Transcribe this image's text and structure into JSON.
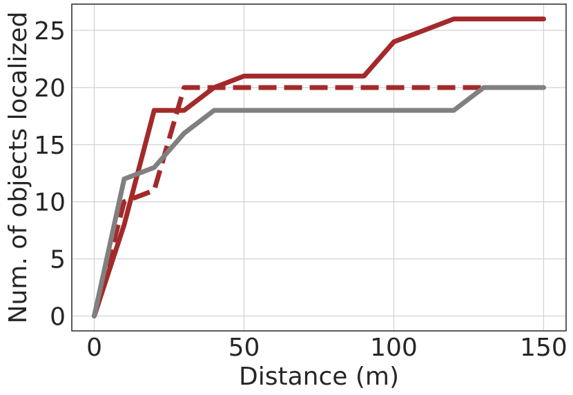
{
  "chart_data": {
    "type": "line",
    "xlabel": "Distance (m)",
    "ylabel": "Num. of objects localized",
    "xlim": [
      -7.5,
      157.5
    ],
    "ylim": [
      -1.3,
      27.3
    ],
    "xticks": [
      0,
      50,
      100,
      150
    ],
    "yticks": [
      0,
      5,
      10,
      15,
      20,
      25
    ],
    "grid": true,
    "series": [
      {
        "color": "#a32a2a",
        "style": "solid",
        "x": [
          0,
          10,
          20,
          30,
          40,
          50,
          60,
          70,
          80,
          90,
          100,
          110,
          120,
          130,
          140,
          150
        ],
        "y": [
          0,
          8,
          18,
          18,
          20,
          21,
          21,
          21,
          21,
          21,
          24,
          25,
          26,
          26,
          26,
          26
        ]
      },
      {
        "color": "#a32a2a",
        "style": "dashed",
        "x": [
          0,
          10,
          20,
          30,
          40,
          50,
          60,
          70,
          80,
          90,
          100,
          110,
          120,
          130
        ],
        "y": [
          0,
          10,
          11,
          20,
          20,
          20,
          20,
          20,
          20,
          20,
          20,
          20,
          20,
          20
        ]
      },
      {
        "color": "#808080",
        "style": "solid",
        "x": [
          0,
          10,
          20,
          30,
          40,
          50,
          60,
          70,
          80,
          90,
          100,
          110,
          120,
          130,
          140,
          150
        ],
        "y": [
          0,
          12,
          13,
          16,
          18,
          18,
          18,
          18,
          18,
          18,
          18,
          18,
          18,
          20,
          20,
          20
        ]
      }
    ]
  }
}
